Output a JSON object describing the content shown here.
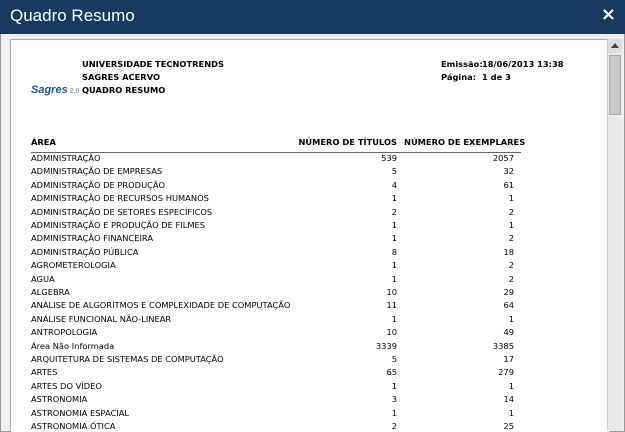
{
  "dialog": {
    "title": "Quadro Resumo",
    "close": "×"
  },
  "report": {
    "logo": {
      "name": "Sagres",
      "version": "2.0"
    },
    "org_lines": [
      "UNIVERSIDADE TECNOTRENDS",
      "SAGRES ACERVO",
      "QUADRO RESUMO"
    ],
    "meta": [
      {
        "label": "Emissão:",
        "value": "18/06/2013 13:38"
      },
      {
        "label": "Página:",
        "value": "1 de 3"
      }
    ],
    "table": {
      "headers": [
        "ÁREA",
        "NÚMERO DE TÍTULOS",
        "NÚMERO DE EXEMPLARES"
      ],
      "rows": [
        [
          "ADMINISTRAÇÃO",
          539,
          2057
        ],
        [
          "ADMINISTRAÇÃO DE EMPRESAS",
          5,
          32
        ],
        [
          "ADMINISTRAÇÃO DE PRODUÇÃO",
          4,
          61
        ],
        [
          "ADMINISTRAÇÃO DE RECURSOS HUMANOS",
          1,
          1
        ],
        [
          "ADMINISTRAÇÃO DE SETORES ESPECÍFICOS",
          2,
          2
        ],
        [
          "ADMINISTRAÇÃO E PRODUÇÃO DE FILMES",
          1,
          1
        ],
        [
          "ADMINISTRAÇÃO FINANCEIRA",
          1,
          2
        ],
        [
          "ADMINISTRAÇÃO PÚBLICA",
          8,
          18
        ],
        [
          "AGROMETEROLOGIA",
          1,
          2
        ],
        [
          "ÁGUA",
          1,
          2
        ],
        [
          "ALGEBRA",
          10,
          29
        ],
        [
          "ANÁLISE DE ALGORÍTMOS E COMPLEXIDADE DE COMPUTAÇÃO",
          11,
          64
        ],
        [
          "ANÁLISE FUNCIONAL NÃO-LINEAR",
          1,
          1
        ],
        [
          "ANTROPOLOGIA",
          10,
          49
        ],
        [
          "Área Não Informada",
          3339,
          3385
        ],
        [
          "ARQUITETURA DE SISTEMAS DE COMPUTAÇÃO",
          5,
          17
        ],
        [
          "ARTES",
          65,
          279
        ],
        [
          "ARTES DO VÍDEO",
          1,
          1
        ],
        [
          "ASTRONOMIA",
          3,
          14
        ],
        [
          "ASTRONOMIA ESPACIAL",
          1,
          1
        ],
        [
          "ASTRONOMIA ÓTICA",
          2,
          25
        ]
      ]
    }
  }
}
